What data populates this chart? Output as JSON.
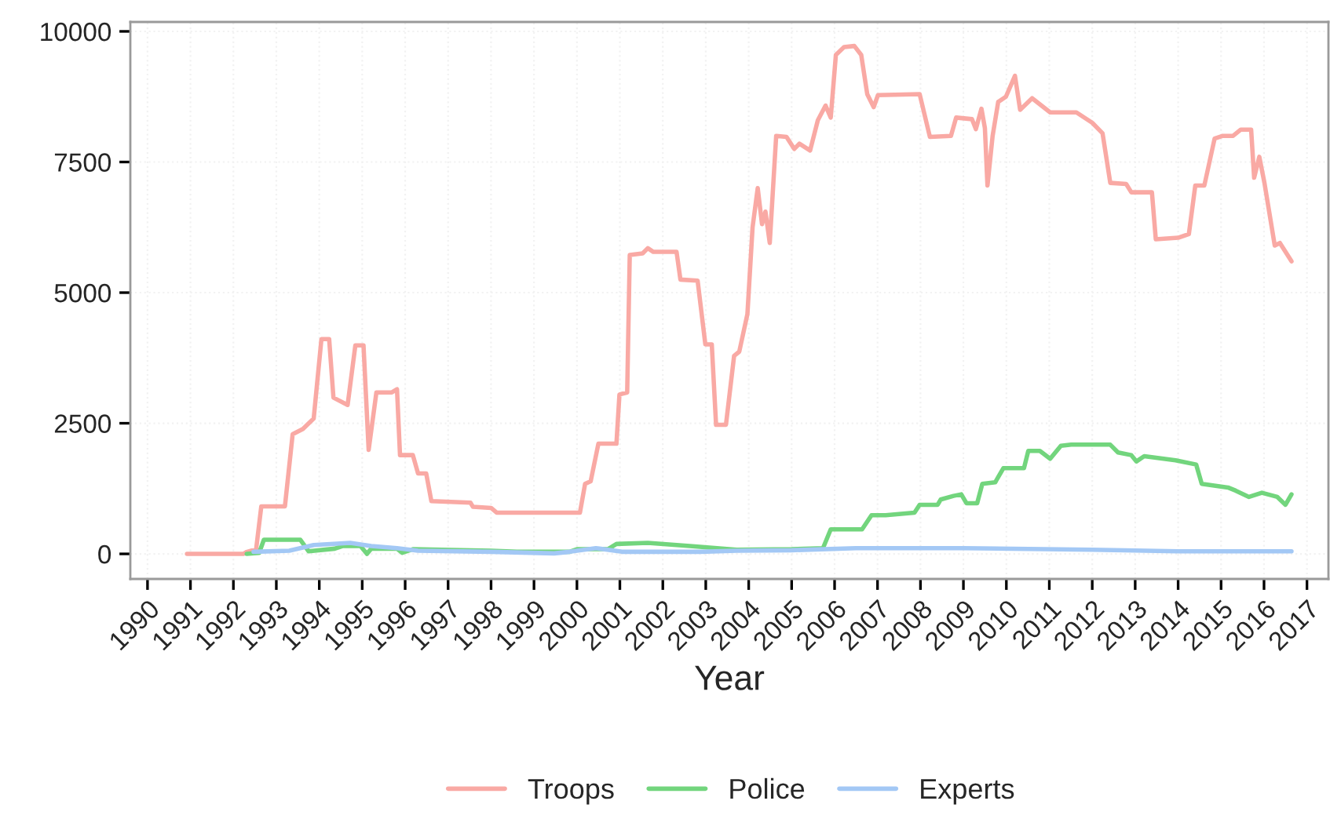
{
  "chart_data": {
    "type": "line",
    "xlabel": "Year",
    "xlim": [
      1989.6,
      2017.5
    ],
    "xticks": [
      1990,
      1991,
      1992,
      1993,
      1994,
      1995,
      1996,
      1997,
      1998,
      1999,
      2000,
      2001,
      2002,
      2003,
      2004,
      2005,
      2006,
      2007,
      2008,
      2009,
      2010,
      2011,
      2012,
      2013,
      2014,
      2015,
      2016,
      2017
    ],
    "ylim": [
      -480,
      10180
    ],
    "yticks": [
      0,
      2500,
      5000,
      7500,
      10000
    ],
    "grid": true,
    "legend": "bottom",
    "line_style": "solid",
    "series": [
      {
        "name": "Troops",
        "color": "#f9a9a4",
        "x": [
          1990.92,
          1992.23,
          1992.29,
          1992.53,
          1992.65,
          1993.2,
          1993.38,
          1993.62,
          1993.87,
          1994.05,
          1994.23,
          1994.33,
          1994.66,
          1994.84,
          1995.03,
          1995.15,
          1995.33,
          1995.69,
          1995.81,
          1995.88,
          1996.18,
          1996.3,
          1996.49,
          1996.61,
          1997.52,
          1997.58,
          1998.0,
          1998.13,
          2000.07,
          2000.19,
          2000.32,
          2000.5,
          2000.92,
          2000.99,
          2001.17,
          2001.23,
          2001.53,
          2001.65,
          2001.78,
          2002.32,
          2002.41,
          2002.81,
          2002.99,
          2003.14,
          2003.24,
          2003.47,
          2003.66,
          2003.78,
          2003.97,
          2004.09,
          2004.21,
          2004.31,
          2004.39,
          2004.49,
          2004.64,
          2004.88,
          2005.06,
          2005.18,
          2005.43,
          2005.61,
          2005.79,
          2005.91,
          2006.03,
          2006.22,
          2006.46,
          2006.62,
          2006.76,
          2006.91,
          2007.01,
          2007.98,
          2008.22,
          2008.71,
          2008.83,
          2009.2,
          2009.29,
          2009.42,
          2009.5,
          2009.56,
          2009.68,
          2009.81,
          2009.99,
          2010.2,
          2010.32,
          2010.6,
          2011.02,
          2011.63,
          2012.0,
          2012.24,
          2012.42,
          2012.79,
          2012.91,
          2013.39,
          2013.48,
          2014.0,
          2014.25,
          2014.4,
          2014.61,
          2014.85,
          2015.04,
          2015.28,
          2015.46,
          2015.7,
          2015.77,
          2015.89,
          2016.01,
          2016.25,
          2016.37,
          2016.64
        ],
        "values": [
          0,
          0,
          30,
          90,
          910,
          910,
          2290,
          2390,
          2590,
          4110,
          4110,
          2990,
          2850,
          3990,
          3990,
          1990,
          3090,
          3090,
          3150,
          1890,
          1890,
          1540,
          1540,
          1010,
          980,
          900,
          880,
          790,
          790,
          1340,
          1390,
          2110,
          2110,
          3050,
          3090,
          5720,
          5750,
          5850,
          5780,
          5780,
          5250,
          5230,
          4010,
          4010,
          2470,
          2470,
          3790,
          3870,
          4590,
          6250,
          7000,
          6310,
          6550,
          5950,
          8000,
          7980,
          7750,
          7850,
          7720,
          8300,
          8580,
          8350,
          9550,
          9700,
          9720,
          9550,
          8800,
          8550,
          8780,
          8800,
          7980,
          8000,
          8350,
          8320,
          8130,
          8520,
          8150,
          7050,
          8000,
          8650,
          8750,
          9150,
          8500,
          8720,
          8450,
          8450,
          8250,
          8050,
          7100,
          7080,
          6920,
          6920,
          6020,
          6050,
          6120,
          7050,
          7050,
          7950,
          8000,
          8000,
          8120,
          8120,
          7200,
          7600,
          7100,
          5900,
          5950,
          5600
        ]
      },
      {
        "name": "Police",
        "color": "#72d57d",
        "x": [
          1992.31,
          1992.6,
          1992.71,
          1993.56,
          1993.75,
          1994.36,
          1994.54,
          1994.96,
          1995.11,
          1995.21,
          1995.81,
          1995.93,
          1996.18,
          1998.0,
          1998.6,
          1999.83,
          2000.0,
          2000.72,
          2000.92,
          2001.65,
          2002.63,
          2003.72,
          2005.0,
          2005.73,
          2005.91,
          2006.64,
          2006.86,
          2007.19,
          2007.86,
          2007.98,
          2008.4,
          2008.47,
          2008.77,
          2008.95,
          2009.07,
          2009.32,
          2009.44,
          2009.74,
          2009.93,
          2010.41,
          2010.51,
          2010.78,
          2011.02,
          2011.27,
          2011.51,
          2012.42,
          2012.6,
          2012.91,
          2013.03,
          2013.21,
          2013.94,
          2014.42,
          2014.55,
          2015.16,
          2015.34,
          2015.65,
          2015.95,
          2016.31,
          2016.5,
          2016.64
        ],
        "values": [
          0,
          20,
          270,
          270,
          50,
          100,
          150,
          150,
          0,
          100,
          100,
          20,
          90,
          60,
          40,
          40,
          90,
          90,
          190,
          210,
          150,
          80,
          90,
          110,
          470,
          470,
          740,
          740,
          790,
          940,
          940,
          1040,
          1110,
          1140,
          970,
          970,
          1340,
          1370,
          1640,
          1640,
          1970,
          1970,
          1820,
          2070,
          2090,
          2090,
          1940,
          1890,
          1770,
          1870,
          1790,
          1710,
          1340,
          1270,
          1210,
          1090,
          1170,
          1090,
          940,
          1140
        ]
      },
      {
        "name": "Experts",
        "color": "#a3c8f5",
        "x": [
          1992.47,
          1993.3,
          1993.87,
          1994.72,
          1995.21,
          1995.81,
          1996.3,
          1998.0,
          1999.47,
          1999.83,
          2000.44,
          2001.05,
          2002.87,
          2003.72,
          2005.0,
          2006.5,
          2009.0,
          2012.0,
          2014.0,
          2016.64
        ],
        "values": [
          40,
          60,
          170,
          210,
          150,
          110,
          60,
          40,
          10,
          40,
          110,
          40,
          40,
          60,
          70,
          110,
          110,
          80,
          50,
          50
        ]
      }
    ]
  }
}
